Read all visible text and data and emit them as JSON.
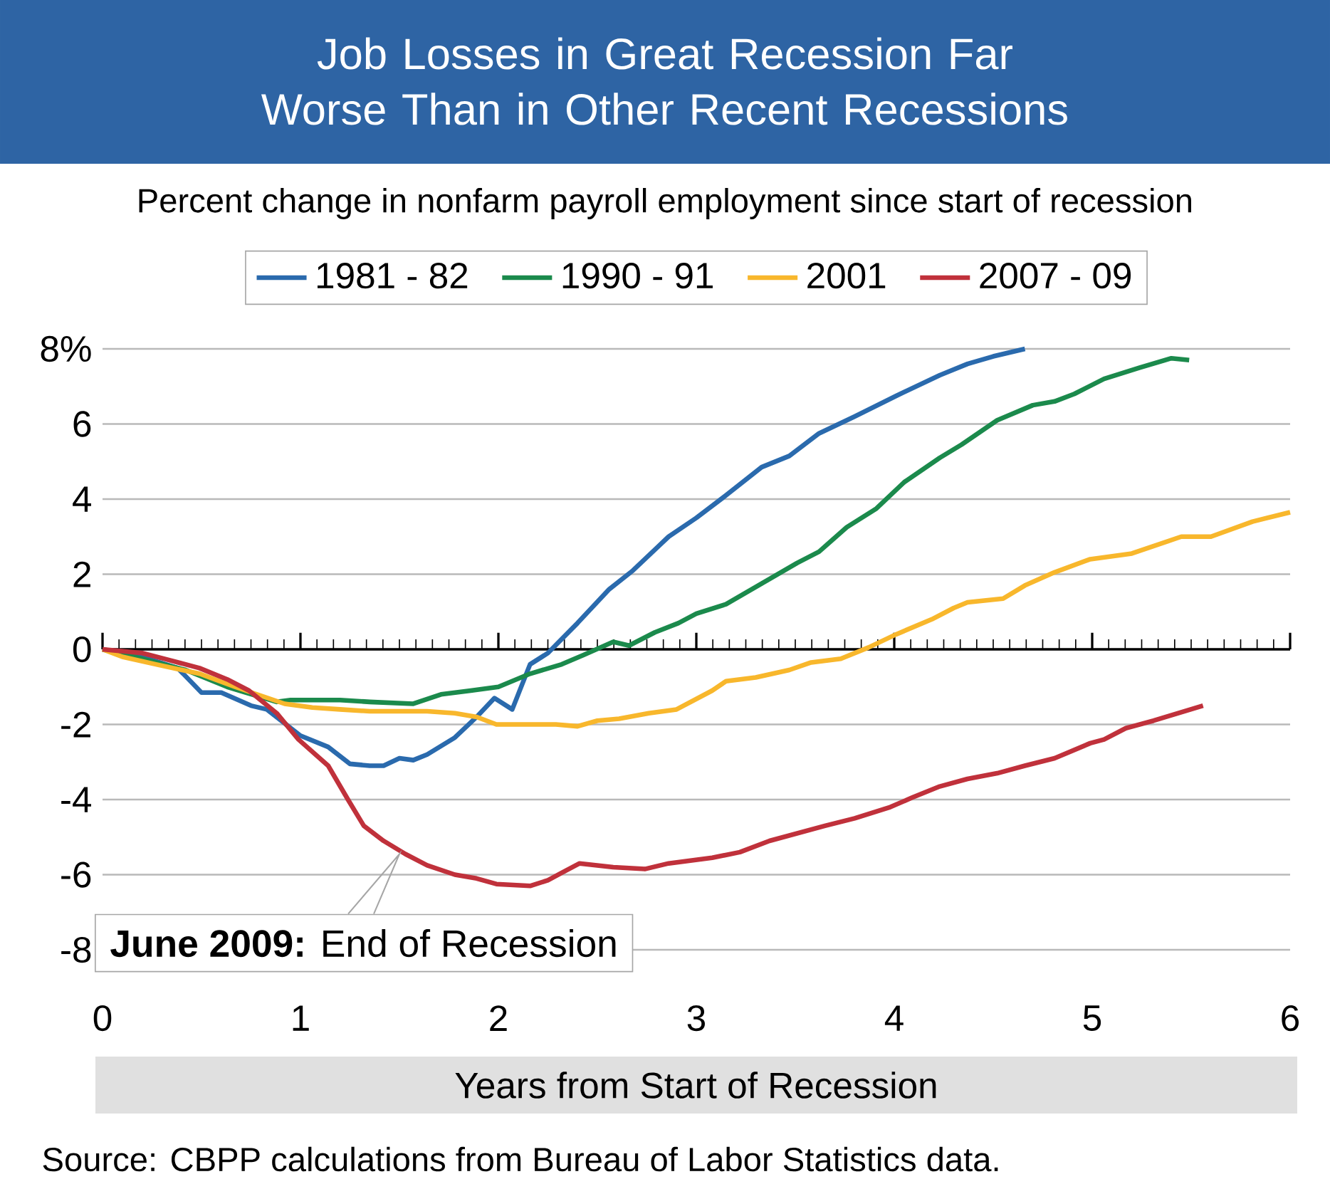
{
  "chart_data": {
    "type": "line",
    "title": "Job Losses in Great Recession Far Worse Than in Other Recent Recessions",
    "subtitle": "Percent change in nonfarm payroll employment since start of recession",
    "xlabel": "Years from Start of Recession",
    "series": [
      {
        "name": "1981 - 82",
        "color": "#2a6aad",
        "x": [
          0,
          0.2,
          0.38,
          0.5,
          0.6,
          0.75,
          0.83,
          1.0,
          1.14,
          1.25,
          1.35,
          1.42,
          1.5,
          1.57,
          1.64,
          1.78,
          1.89,
          1.98,
          2.07,
          2.16,
          2.25,
          2.4,
          2.56,
          2.68,
          2.86,
          3.0,
          3.15,
          3.33,
          3.47,
          3.62,
          3.8,
          4.01,
          4.23,
          4.37,
          4.5,
          4.66
        ],
        "values": [
          0,
          -0.2,
          -0.5,
          -1.15,
          -1.15,
          -1.5,
          -1.6,
          -2.3,
          -2.6,
          -3.05,
          -3.1,
          -3.1,
          -2.9,
          -2.95,
          -2.8,
          -2.35,
          -1.8,
          -1.3,
          -1.6,
          -0.4,
          -0.1,
          0.7,
          1.6,
          2.1,
          3.0,
          3.5,
          4.1,
          4.85,
          5.15,
          5.75,
          6.2,
          6.75,
          7.3,
          7.6,
          7.8,
          8.0
        ]
      },
      {
        "name": "1990 - 91",
        "color": "#1b8a4c",
        "x": [
          0,
          0.2,
          0.42,
          0.63,
          0.88,
          0.95,
          1.2,
          1.35,
          1.57,
          1.71,
          1.86,
          2.0,
          2.16,
          2.32,
          2.43,
          2.58,
          2.66,
          2.79,
          2.91,
          3.0,
          3.15,
          3.33,
          3.51,
          3.62,
          3.76,
          3.91,
          4.05,
          4.23,
          4.34,
          4.52,
          4.7,
          4.81,
          4.91,
          5.06,
          5.24,
          5.4,
          5.49
        ],
        "values": [
          0,
          -0.25,
          -0.55,
          -1.0,
          -1.4,
          -1.35,
          -1.35,
          -1.4,
          -1.45,
          -1.2,
          -1.1,
          -1.0,
          -0.65,
          -0.4,
          -0.15,
          0.2,
          0.1,
          0.45,
          0.7,
          0.95,
          1.2,
          1.75,
          2.3,
          2.6,
          3.25,
          3.75,
          4.45,
          5.1,
          5.45,
          6.1,
          6.5,
          6.6,
          6.8,
          7.2,
          7.5,
          7.75,
          7.7
        ]
      },
      {
        "name": "2001",
        "color": "#f8b72c",
        "x": [
          0,
          0.1,
          0.27,
          0.49,
          0.67,
          0.92,
          1.06,
          1.2,
          1.35,
          1.5,
          1.64,
          1.78,
          1.89,
          1.99,
          2.11,
          2.29,
          2.4,
          2.5,
          2.61,
          2.76,
          2.9,
          3.08,
          3.15,
          3.3,
          3.47,
          3.58,
          3.73,
          3.87,
          4.01,
          4.19,
          4.3,
          4.37,
          4.55,
          4.66,
          4.81,
          4.99,
          5.2,
          5.45,
          5.6,
          5.81,
          6.0
        ],
        "values": [
          0,
          -0.2,
          -0.4,
          -0.65,
          -1.0,
          -1.45,
          -1.55,
          -1.6,
          -1.65,
          -1.65,
          -1.65,
          -1.7,
          -1.8,
          -2.0,
          -2.0,
          -2.0,
          -2.05,
          -1.9,
          -1.85,
          -1.7,
          -1.6,
          -1.1,
          -0.85,
          -0.75,
          -0.55,
          -0.35,
          -0.25,
          0.05,
          0.4,
          0.8,
          1.1,
          1.25,
          1.35,
          1.7,
          2.05,
          2.4,
          2.55,
          3.0,
          3.0,
          3.4,
          3.65
        ]
      },
      {
        "name": "2007 - 09",
        "color": "#c0313b",
        "x": [
          0,
          0.2,
          0.31,
          0.49,
          0.63,
          0.74,
          0.88,
          0.99,
          1.14,
          1.24,
          1.32,
          1.42,
          1.53,
          1.64,
          1.78,
          1.89,
          1.99,
          2.16,
          2.25,
          2.32,
          2.41,
          2.58,
          2.74,
          2.86,
          3.08,
          3.22,
          3.37,
          3.51,
          3.65,
          3.8,
          3.98,
          4.09,
          4.23,
          4.37,
          4.52,
          4.66,
          4.81,
          4.99,
          5.06,
          5.17,
          5.31,
          5.56
        ],
        "values": [
          0,
          -0.1,
          -0.25,
          -0.5,
          -0.8,
          -1.1,
          -1.7,
          -2.4,
          -3.1,
          -4.0,
          -4.7,
          -5.1,
          -5.45,
          -5.75,
          -6.0,
          -6.1,
          -6.25,
          -6.3,
          -6.15,
          -5.95,
          -5.7,
          -5.8,
          -5.85,
          -5.7,
          -5.55,
          -5.4,
          -5.1,
          -4.9,
          -4.7,
          -4.5,
          -4.2,
          -3.95,
          -3.65,
          -3.45,
          -3.3,
          -3.1,
          -2.9,
          -2.5,
          -2.4,
          -2.1,
          -1.9,
          -1.5
        ]
      }
    ],
    "xlim": [
      0,
      6
    ],
    "xticks": [
      0,
      1,
      2,
      3,
      4,
      5,
      6
    ],
    "ylim": [
      -8,
      8
    ],
    "yticks": [
      {
        "value": 8,
        "label": "8%"
      },
      6,
      4,
      2,
      0,
      -2,
      -4,
      -6,
      -8
    ],
    "grid": "y",
    "legend": "top",
    "line_style": "solid",
    "marker": "none",
    "annotations": [
      {
        "text": "**June 2009:** End of Recession",
        "x": 1.5,
        "y": -5.45
      },
      "Source: CBPP calculations from Bureau of Labor Statistics data."
    ]
  }
}
